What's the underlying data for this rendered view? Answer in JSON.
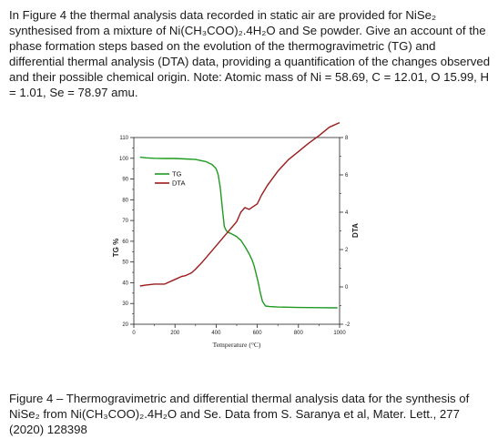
{
  "question": {
    "text": "In Figure 4 the thermal analysis data recorded in static air are provided for NiSe₂ synthesised from a mixture of Ni(CH₃COO)₂.4H₂O and Se powder. Give an account of the phase formation steps based on the evolution of the thermogravimetric (TG) and differential thermal analysis (DTA) data, providing a quantification of the changes observed and their possible chemical origin. Note: Atomic mass of Ni = 58.69, C = 12.01, O 15.99, H = 1.01, Se = 78.97 amu."
  },
  "caption": {
    "text": "Figure 4 – Thermogravimetric and differential thermal analysis data for the synthesis of NiSe₂ from Ni(CH₃COO)₂.4H₂O and Se. Data from S. Saranya et al, Mater. Lett., 277 (2020) 128398"
  },
  "chart_data": {
    "type": "line",
    "title": "",
    "xlabel": "Temperature (°C)",
    "ylabel": "TG %",
    "y2label": "DTA",
    "xlim": [
      0,
      1000
    ],
    "ylim": [
      20,
      110
    ],
    "y2lim": [
      -2,
      8
    ],
    "xticks": [
      0,
      200,
      400,
      600,
      800,
      1000
    ],
    "yticks": [
      20,
      30,
      40,
      50,
      60,
      70,
      80,
      90,
      100,
      110
    ],
    "y2ticks": [
      -2,
      0,
      2,
      4,
      6,
      8
    ],
    "legend_position": "top-left",
    "series": [
      {
        "name": "TG",
        "axis": "left",
        "color": "#1f9a1f",
        "x": [
          30,
          60,
          100,
          150,
          200,
          250,
          300,
          350,
          380,
          400,
          410,
          420,
          430,
          440,
          450,
          460,
          470,
          480,
          490,
          500,
          520,
          540,
          560,
          575,
          585,
          595,
          605,
          615,
          625,
          640,
          660,
          700,
          800,
          900,
          990
        ],
        "y": [
          100.5,
          100.2,
          100,
          99.9,
          99.9,
          99.7,
          99.4,
          98.4,
          97,
          95,
          92,
          86,
          76,
          67,
          65,
          64.2,
          63.8,
          63.3,
          62.8,
          62.2,
          60.5,
          57.5,
          54,
          51,
          48,
          44,
          40,
          35,
          31,
          28.8,
          28.5,
          28.3,
          28.1,
          28,
          27.9
        ]
      },
      {
        "name": "DTA",
        "axis": "right",
        "color": "#9b1c1c",
        "x": [
          30,
          60,
          100,
          150,
          200,
          230,
          250,
          280,
          300,
          330,
          350,
          400,
          450,
          500,
          520,
          540,
          560,
          580,
          600,
          620,
          650,
          700,
          750,
          800,
          850,
          900,
          950,
          1000
        ],
        "y": [
          0.05,
          0.1,
          0.15,
          0.15,
          0.4,
          0.55,
          0.6,
          0.75,
          0.95,
          1.3,
          1.55,
          2.2,
          2.85,
          3.5,
          4,
          4.25,
          4.15,
          4.3,
          4.45,
          4.9,
          5.45,
          6.2,
          6.8,
          7.25,
          7.7,
          8.1,
          8.55,
          8.8
        ]
      }
    ]
  }
}
